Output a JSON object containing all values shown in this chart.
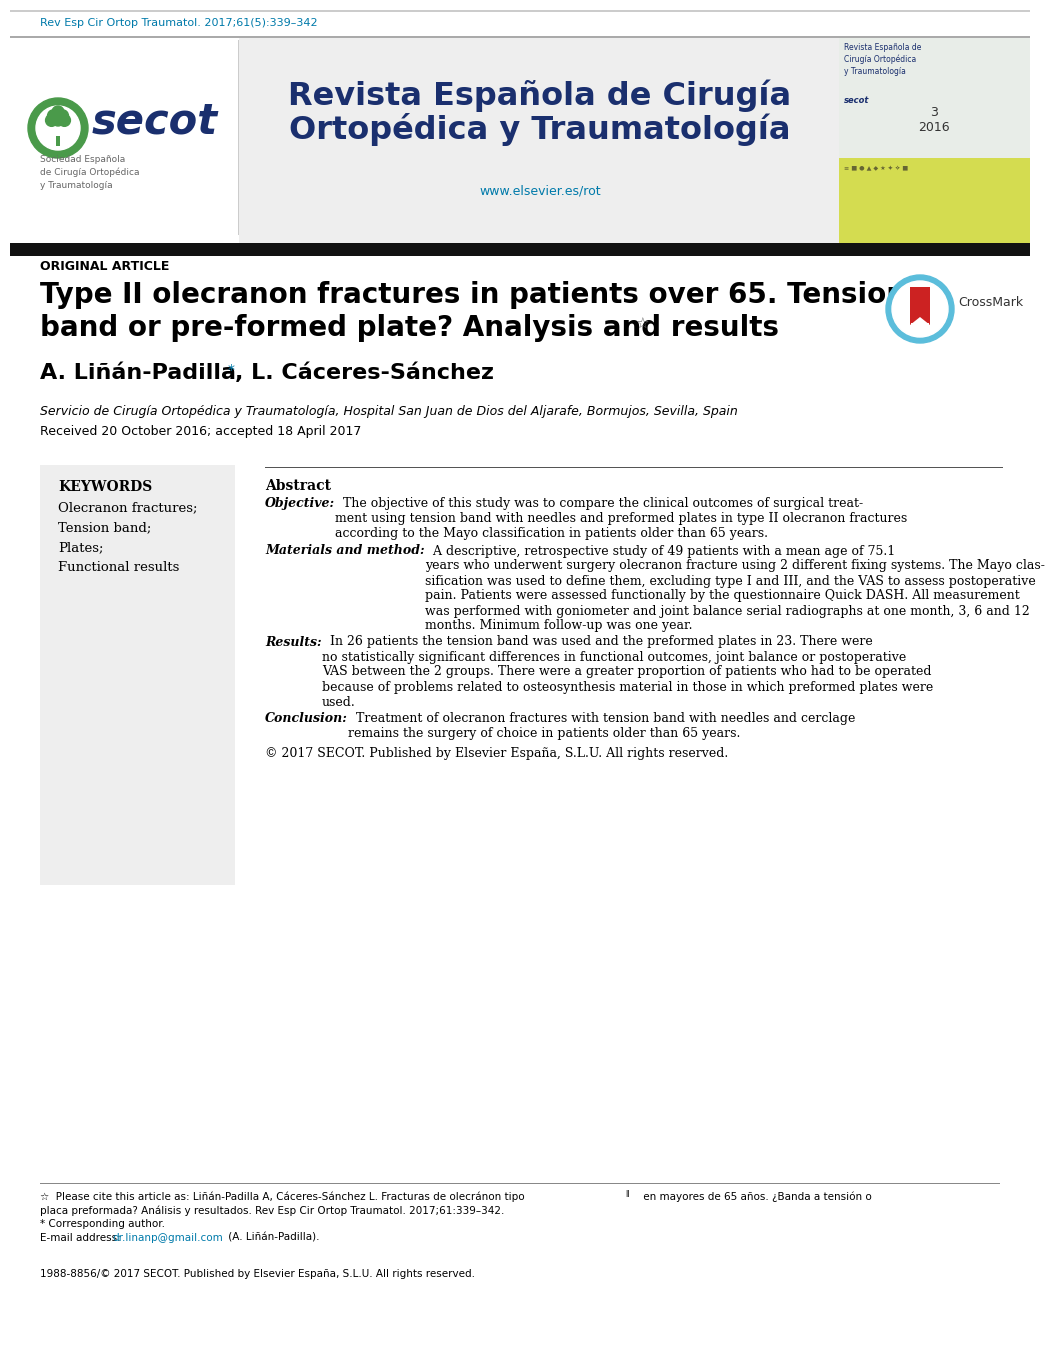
{
  "journal_ref": "Rev Esp Cir Ortop Traumatol. 2017;61(5):339–342",
  "journal_ref_color": "#007aaa",
  "header_bg": "#eeeeee",
  "header_title_line1": "Revista Española de Cirugía",
  "header_title_line2": "Ortopédica y Traumatología",
  "header_title_color": "#1a2f6e",
  "header_url": "www.elsevier.es/rot",
  "header_url_color": "#007aaa",
  "divider_color": "#222222",
  "article_type": "ORIGINAL ARTICLE",
  "title_line1": "Type II olecranon fractures in patients over 65. Tension",
  "title_line2": "band or pre-formed plate? Analysis and results",
  "title_star": "☆",
  "title_color": "#000000",
  "authors_main": "A. Liñán-Padilla",
  "authors_rest": ", L. Cáceres-Sánchez",
  "affiliation": "Servicio de Cirugía Ortopédica y Traumatología, Hospital San Juan de Dios del Aljarafe, Bormujos, Sevilla, Spain",
  "received": "Received 20 October 2016; accepted 18 April 2017",
  "keywords_title": "KEYWORDS",
  "keywords": [
    "Olecranon fractures;",
    "Tension band;",
    "Plates;",
    "Functional results"
  ],
  "abstract_title": "Abstract",
  "obj_label": "Objective:",
  "obj_text": "  The objective of this study was to compare the clinical outcomes of surgical treat-\nment using tension band with needles and preformed plates in type II olecranon fractures\naccording to the Mayo classification in patients older than 65 years.",
  "mm_label": "Materials and method:",
  "mm_text": "  A descriptive, retrospective study of 49 patients with a mean age of 75.1\nyears who underwent surgery olecranon fracture using 2 different fixing systems. The Mayo clas-\nsification was used to define them, excluding type I and III, and the VAS to assess postoperative\npain. Patients were assessed functionally by the questionnaire Quick DASH. All measurement\nwas performed with goniometer and joint balance serial radiographs at one month, 3, 6 and 12\nmonths. Minimum follow-up was one year.",
  "res_label": "Results:",
  "res_text": "  In 26 patients the tension band was used and the preformed plates in 23. There were\nno statistically significant differences in functional outcomes, joint balance or postoperative\nVAS between the 2 groups. There were a greater proportion of patients who had to be operated\nbecause of problems related to osteosynthesis material in those in which preformed plates were\nused.",
  "conc_label": "Conclusion:",
  "conc_text": "  Treatment of olecranon fractures with tension band with needles and cerclage\nremains the surgery of choice in patients older than 65 years.",
  "copyright": "© 2017 SECOT. Published by Elsevier España, S.L.U. All rights reserved.",
  "fn1": "☆  Please cite this article as: Liñán-Padilla A, Cáceres-Sánchez L. Fracturas de olecránon tipo",
  "fn1_II": " II",
  "fn1b": " en mayores de 65 años. ¿Banda a tensión o",
  "fn2": "placa preformada? Análisis y resultados. Rev Esp Cir Ortop Traumatol. 2017;61:339–342.",
  "fn3": "* Corresponding author.",
  "fn4_pre": "E-mail address: ",
  "fn4_email": "dr.linanp@gmail.com",
  "fn4_post": " (A. Liñán-Padilla).",
  "fn5": "1988-8856/© 2017 SECOT. Published by Elsevier España, S.L.U. All rights reserved.",
  "blue": "#007aaa",
  "dark_blue": "#1a2f6e",
  "green": "#4a9a4a",
  "bg": "#ffffff",
  "black": "#000000",
  "gray_text": "#444444",
  "light_gray": "#eeeeee"
}
